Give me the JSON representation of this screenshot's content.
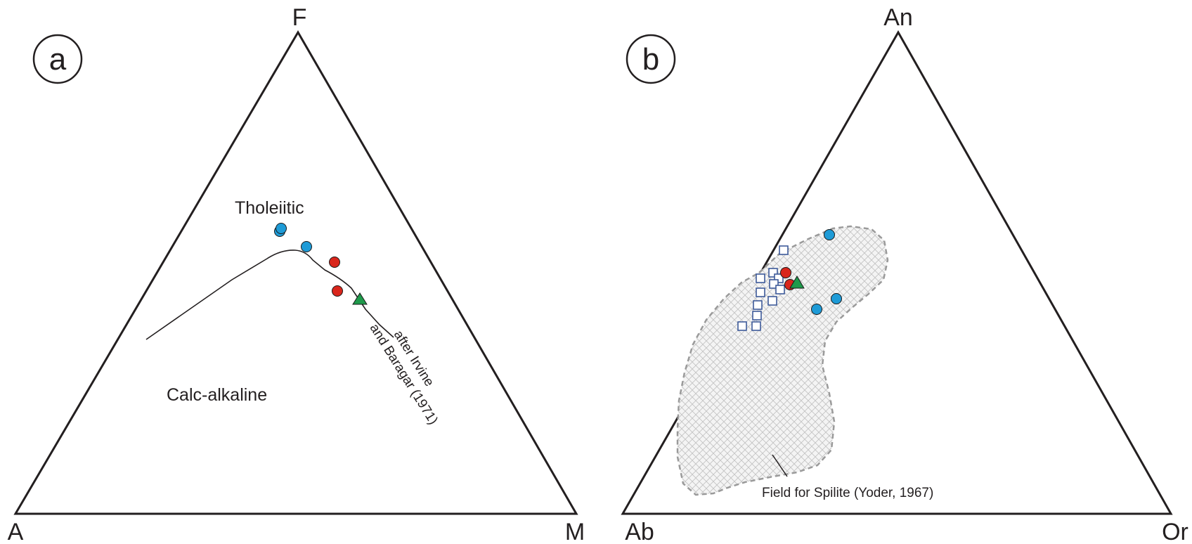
{
  "panel_a": {
    "letter": "a",
    "vertices": {
      "top": "F",
      "left": "A",
      "right": "M"
    },
    "field_labels": {
      "upper": "Tholeiitic",
      "lower": "Calc-alkaline"
    },
    "reference": {
      "line1": "after Irvine",
      "line2": "and Baragar (1971)"
    }
  },
  "panel_b": {
    "letter": "b",
    "vertices": {
      "top": "An",
      "left": "Ab",
      "right": "Or"
    },
    "field_label": "Field for Spilite (Yoder, 1967)"
  },
  "colors": {
    "blue_circle": "#1e9bd7",
    "red_circle": "#d9261c",
    "green_triangle": "#1f9a4b",
    "open_square": "#3d5a99",
    "spilite_outline": "#9a9a9a"
  }
}
